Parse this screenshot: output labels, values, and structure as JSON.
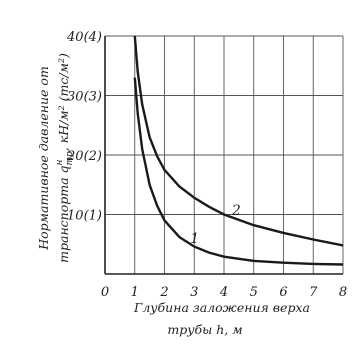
{
  "chart_data": {
    "type": "line",
    "xlabel_line1": "Глубина заложения верха",
    "xlabel_line2": "трубы h, м",
    "ylabel_line1": "Нормативное давление от",
    "ylabel_line2": "транспорта q",
    "ylabel_sup": "н",
    "ylabel_sub": "тр",
    "ylabel_line2_rest": ", кН/м² (тс/м²)",
    "x_ticks": [
      "0",
      "1",
      "2",
      "3",
      "4",
      "5",
      "6",
      "7",
      "8"
    ],
    "y_ticks": [
      "10(1)",
      "20(2)",
      "30(3)",
      "40(4)"
    ],
    "xlim": [
      0,
      8
    ],
    "ylim": [
      0,
      40
    ],
    "grid": true,
    "series": [
      {
        "name": "1",
        "x": [
          1.0,
          1.1,
          1.25,
          1.5,
          1.75,
          2.0,
          2.5,
          3.0,
          3.5,
          4.0,
          5.0,
          6.0,
          7.0,
          8.0
        ],
        "y": [
          33.0,
          27.0,
          21.0,
          15.0,
          11.5,
          9.0,
          6.2,
          4.6,
          3.6,
          2.9,
          2.2,
          1.9,
          1.7,
          1.6
        ]
      },
      {
        "name": "2",
        "x": [
          1.0,
          1.1,
          1.25,
          1.5,
          1.75,
          2.0,
          2.5,
          3.0,
          3.5,
          4.0,
          5.0,
          6.0,
          7.0,
          8.0
        ],
        "y": [
          40.0,
          34.0,
          28.5,
          23.0,
          19.8,
          17.5,
          14.7,
          12.8,
          11.3,
          10.0,
          8.2,
          6.9,
          5.8,
          4.8
        ]
      }
    ]
  }
}
